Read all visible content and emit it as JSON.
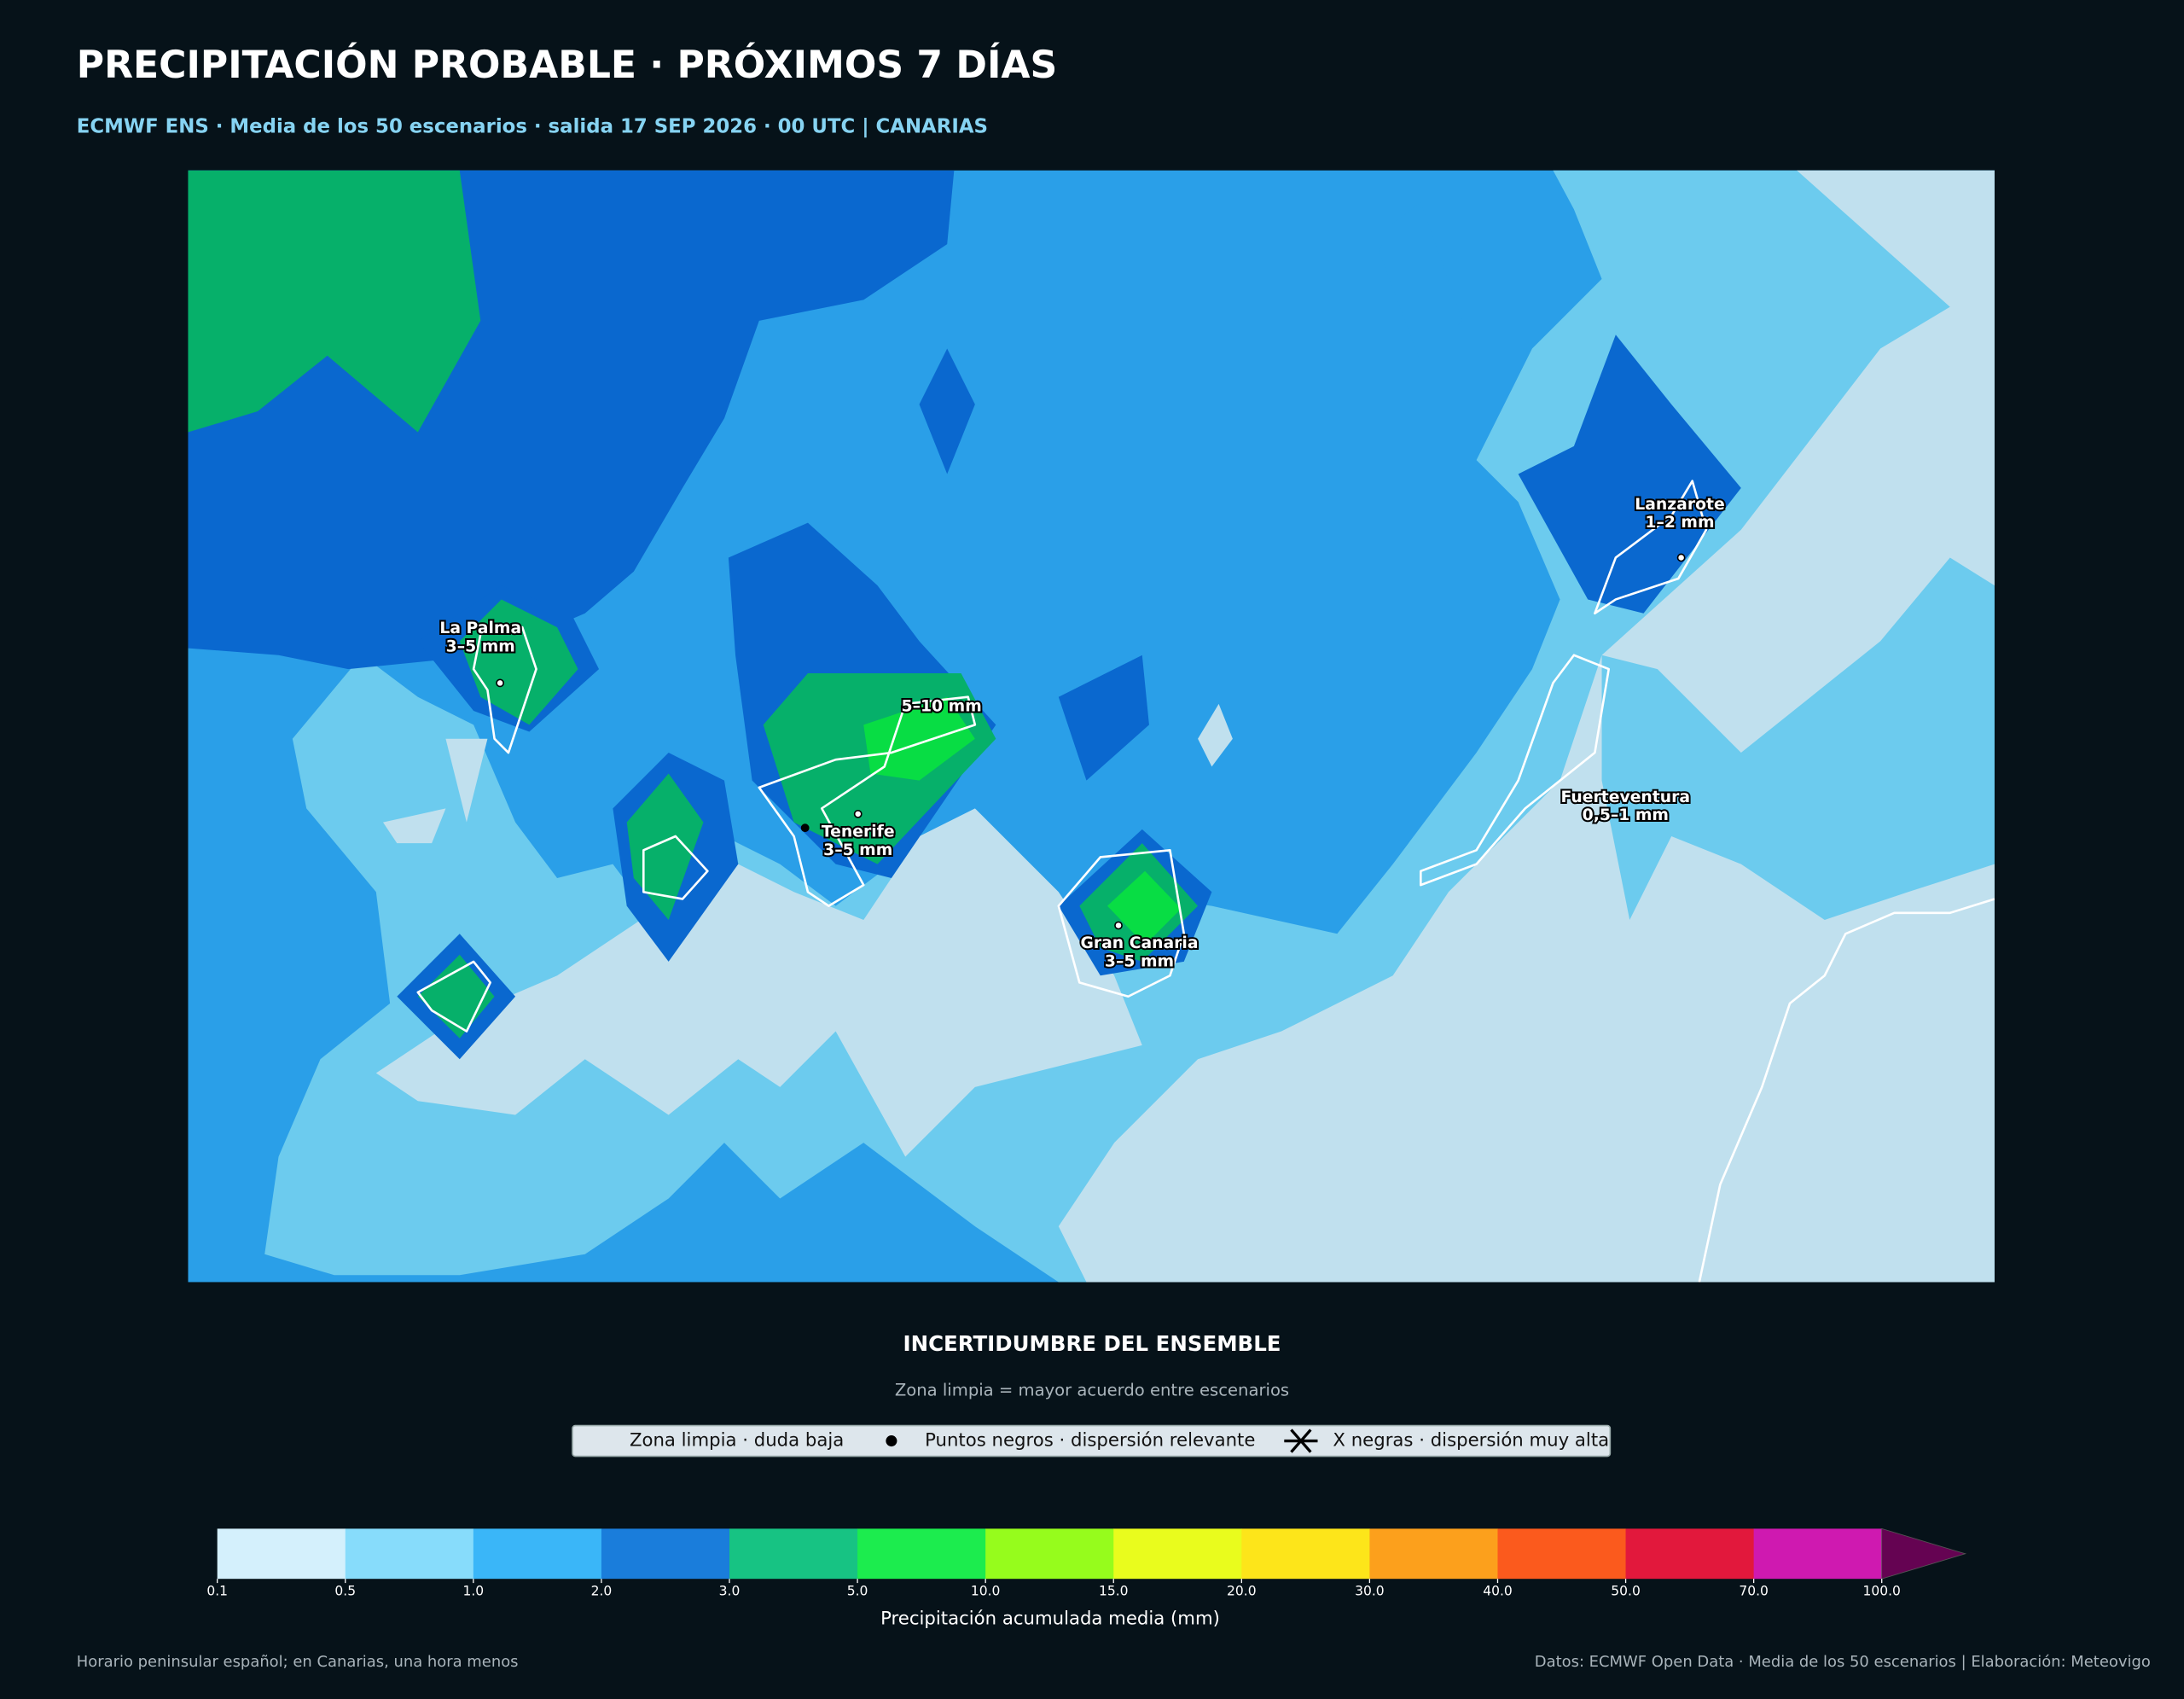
{
  "title": "PRECIPITACIÓN PROBABLE · PRÓXIMOS 7 DÍAS",
  "subtitle": "ECMWF ENS · Media de los 50 escenarios · salida 17 SEP 2026 · 00 UTC | CANARIAS",
  "map": {
    "highlight": "5–10 mm",
    "labels": [
      {
        "name": "La Palma",
        "amount": "3–5 mm"
      },
      {
        "name": "Tenerife",
        "amount": "3–5 mm"
      },
      {
        "name": "Gran Canaria",
        "amount": "3–5 mm"
      },
      {
        "name": "Lanzarote",
        "amount": "1–2 mm"
      },
      {
        "name": "Fuerteventura",
        "amount": "0,5–1 mm"
      }
    ]
  },
  "uncertainty": {
    "title": "INCERTIDUMBRE DEL ENSEMBLE",
    "subtitle": "Zona limpia = mayor acuerdo entre escenarios",
    "legend": [
      "Zona limpia · duda baja",
      "Puntos negros · dispersión relevante",
      "X negras · dispersión muy alta"
    ]
  },
  "colorbar": {
    "label": "Precipitación acumulada media (mm)",
    "bounds": [
      0.1,
      0.5,
      {
        "value": 1,
        "label": "1.0"
      },
      {
        "value": 2,
        "label": "2.0"
      },
      {
        "value": 3,
        "label": "3.0"
      },
      {
        "value": 5,
        "label": "5.0"
      },
      {
        "value": 10,
        "label": "10.0"
      },
      {
        "value": 15,
        "label": "15.0"
      },
      {
        "value": 20,
        "label": "20.0"
      },
      {
        "value": 30,
        "label": "30.0"
      },
      {
        "value": 40,
        "label": "40.0"
      },
      {
        "value": 50,
        "label": "50.0"
      },
      {
        "value": 70,
        "label": "70.0"
      },
      {
        "value": 100,
        "label": "100.0"
      }
    ],
    "colors": [
      "#d4f0fc",
      "#87dcfb",
      "#3ab6f8",
      "#1a7ddb",
      "#17c383",
      "#1cec4e",
      "#96fc1c",
      "#e9fc1d",
      "#fde51a",
      "#fca01c",
      "#fb5a1d",
      "#e2183c",
      "#cf19b0"
    ],
    "extend_color": "#650352"
  },
  "footer": {
    "left": "Horario peninsular español; en Canarias, una hora menos",
    "right": "Datos: ECMWF Open Data · Media de los 50 escenarios | Elaboración: Meteovigo"
  }
}
